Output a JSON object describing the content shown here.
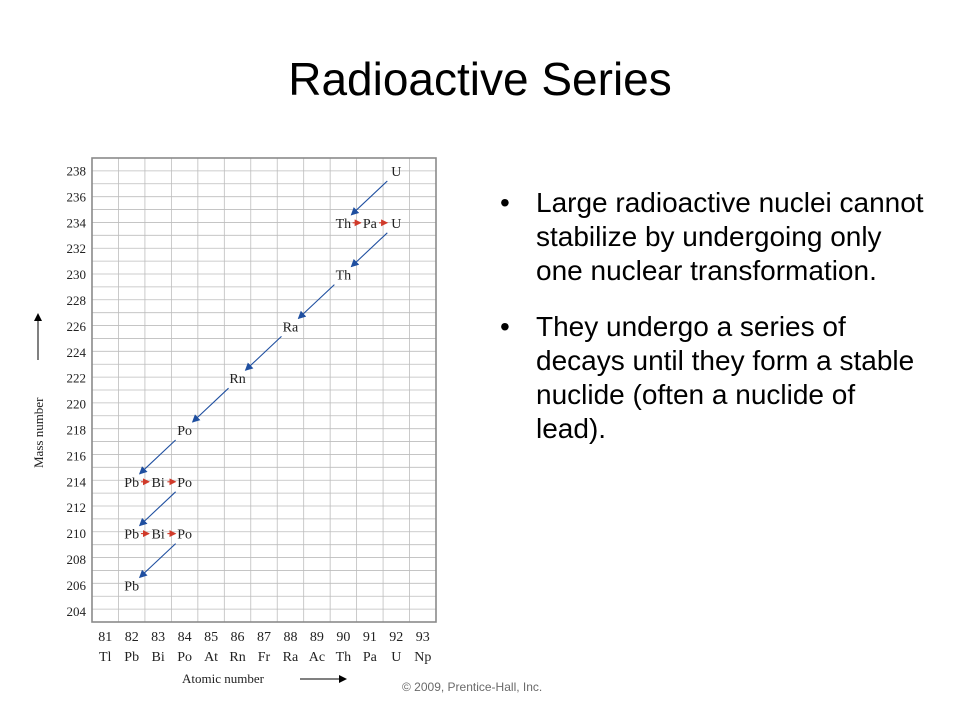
{
  "title": "Radioactive Series",
  "bullets": [
    "Large radioactive nuclei cannot stabilize by undergoing only one nuclear transformation.",
    "They undergo a series of decays until they form a stable nuclide (often a nuclide of lead)."
  ],
  "bullet_glyph": "•",
  "copyright": "© 2009, Prentice-Hall, Inc.",
  "diagram": {
    "x_axis_label": "Atomic number",
    "y_axis_label": "Mass number",
    "atomic_numbers": [
      81,
      82,
      83,
      84,
      85,
      86,
      87,
      88,
      89,
      90,
      91,
      92,
      93
    ],
    "element_symbols": [
      "Tl",
      "Pb",
      "Bi",
      "Po",
      "At",
      "Rn",
      "Fr",
      "Ra",
      "Ac",
      "Th",
      "Pa",
      "U",
      "Np"
    ],
    "mass_numbers": [
      238,
      236,
      234,
      232,
      230,
      228,
      226,
      224,
      222,
      220,
      218,
      216,
      214,
      212,
      210,
      208,
      206,
      204
    ],
    "nuclides": [
      {
        "symbol": "U",
        "z": 92,
        "a": 238
      },
      {
        "symbol": "Th",
        "z": 90,
        "a": 234
      },
      {
        "symbol": "Pa",
        "z": 91,
        "a": 234
      },
      {
        "symbol": "U",
        "z": 92,
        "a": 234
      },
      {
        "symbol": "Th",
        "z": 90,
        "a": 230
      },
      {
        "symbol": "Ra",
        "z": 88,
        "a": 226
      },
      {
        "symbol": "Rn",
        "z": 86,
        "a": 222
      },
      {
        "symbol": "Po",
        "z": 84,
        "a": 218
      },
      {
        "symbol": "Pb",
        "z": 82,
        "a": 214
      },
      {
        "symbol": "Bi",
        "z": 83,
        "a": 214
      },
      {
        "symbol": "Po",
        "z": 84,
        "a": 214
      },
      {
        "symbol": "Pb",
        "z": 82,
        "a": 210
      },
      {
        "symbol": "Bi",
        "z": 83,
        "a": 210
      },
      {
        "symbol": "Po",
        "z": 84,
        "a": 210
      },
      {
        "symbol": "Pb",
        "z": 82,
        "a": 206
      }
    ],
    "decays": [
      {
        "type": "alpha",
        "from": [
          92,
          238
        ],
        "to": [
          90,
          234
        ]
      },
      {
        "type": "beta",
        "from": [
          90,
          234
        ],
        "to": [
          91,
          234
        ]
      },
      {
        "type": "beta",
        "from": [
          91,
          234
        ],
        "to": [
          92,
          234
        ]
      },
      {
        "type": "alpha",
        "from": [
          92,
          234
        ],
        "to": [
          90,
          230
        ]
      },
      {
        "type": "alpha",
        "from": [
          90,
          230
        ],
        "to": [
          88,
          226
        ]
      },
      {
        "type": "alpha",
        "from": [
          88,
          226
        ],
        "to": [
          86,
          222
        ]
      },
      {
        "type": "alpha",
        "from": [
          86,
          222
        ],
        "to": [
          84,
          218
        ]
      },
      {
        "type": "alpha",
        "from": [
          84,
          218
        ],
        "to": [
          82,
          214
        ]
      },
      {
        "type": "beta",
        "from": [
          82,
          214
        ],
        "to": [
          83,
          214
        ]
      },
      {
        "type": "beta",
        "from": [
          83,
          214
        ],
        "to": [
          84,
          214
        ]
      },
      {
        "type": "alpha",
        "from": [
          84,
          214
        ],
        "to": [
          82,
          210
        ]
      },
      {
        "type": "beta",
        "from": [
          82,
          210
        ],
        "to": [
          83,
          210
        ]
      },
      {
        "type": "beta",
        "from": [
          83,
          210
        ],
        "to": [
          84,
          210
        ]
      },
      {
        "type": "alpha",
        "from": [
          84,
          210
        ],
        "to": [
          82,
          206
        ]
      }
    ],
    "colors": {
      "grid": "#bdbdbd",
      "frame": "#8a8a8a",
      "alpha_arrow": "#1f4fa0",
      "beta_arrow": "#d03a2a",
      "text": "#222222"
    }
  }
}
